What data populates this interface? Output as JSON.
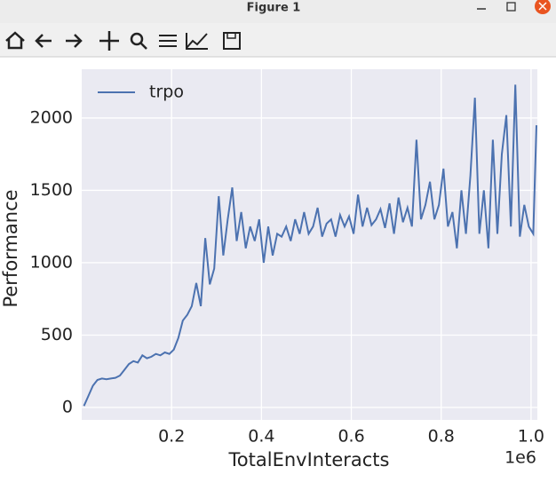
{
  "window": {
    "title": "Figure 1"
  },
  "chart_data": {
    "type": "line",
    "xlabel": "TotalEnvInteracts",
    "ylabel": "Performance",
    "x_offset_label": "1e6",
    "x": [
      0.005,
      0.015,
      0.025,
      0.035,
      0.045,
      0.055,
      0.065,
      0.075,
      0.085,
      0.095,
      0.105,
      0.115,
      0.125,
      0.135,
      0.145,
      0.155,
      0.165,
      0.175,
      0.185,
      0.195,
      0.205,
      0.215,
      0.225,
      0.235,
      0.245,
      0.255,
      0.265,
      0.275,
      0.285,
      0.295,
      0.305,
      0.315,
      0.325,
      0.335,
      0.345,
      0.355,
      0.365,
      0.375,
      0.385,
      0.395,
      0.405,
      0.415,
      0.425,
      0.435,
      0.445,
      0.455,
      0.465,
      0.475,
      0.485,
      0.495,
      0.505,
      0.515,
      0.525,
      0.535,
      0.545,
      0.555,
      0.565,
      0.575,
      0.585,
      0.595,
      0.605,
      0.615,
      0.625,
      0.635,
      0.645,
      0.655,
      0.665,
      0.675,
      0.685,
      0.695,
      0.705,
      0.715,
      0.725,
      0.735,
      0.745,
      0.755,
      0.765,
      0.775,
      0.785,
      0.795,
      0.805,
      0.815,
      0.825,
      0.835,
      0.845,
      0.855,
      0.865,
      0.875,
      0.885,
      0.895,
      0.905,
      0.915,
      0.925,
      0.935,
      0.945,
      0.955,
      0.965,
      0.975,
      0.985,
      0.995,
      1.005,
      1.012
    ],
    "series": [
      {
        "name": "trpo",
        "color": "#4c72b0",
        "values": [
          10,
          80,
          150,
          190,
          200,
          195,
          200,
          205,
          220,
          260,
          300,
          320,
          310,
          360,
          340,
          350,
          370,
          360,
          380,
          370,
          400,
          480,
          600,
          640,
          700,
          860,
          700,
          1170,
          850,
          960,
          1460,
          1050,
          1300,
          1520,
          1150,
          1350,
          1100,
          1250,
          1150,
          1300,
          1000,
          1250,
          1050,
          1200,
          1180,
          1250,
          1150,
          1300,
          1200,
          1350,
          1200,
          1250,
          1380,
          1180,
          1270,
          1300,
          1180,
          1330,
          1250,
          1320,
          1200,
          1470,
          1250,
          1380,
          1260,
          1300,
          1370,
          1240,
          1410,
          1200,
          1450,
          1280,
          1380,
          1250,
          1850,
          1300,
          1400,
          1560,
          1300,
          1400,
          1650,
          1250,
          1350,
          1100,
          1500,
          1200,
          1600,
          2140,
          1200,
          1500,
          1100,
          1850,
          1200,
          1750,
          2020,
          1250,
          2230,
          1180,
          1400,
          1250,
          1200,
          1950
        ]
      }
    ],
    "xlim": [
      0,
      1.014
    ],
    "ylim": [
      -86,
      2337
    ],
    "xticks": [
      0.2,
      0.4,
      0.6,
      0.8,
      {
        "value": 1,
        "label": "1.0"
      }
    ],
    "yticks": [
      0,
      500,
      1000,
      1500,
      2000
    ],
    "grid": true,
    "legend": "upper left"
  }
}
